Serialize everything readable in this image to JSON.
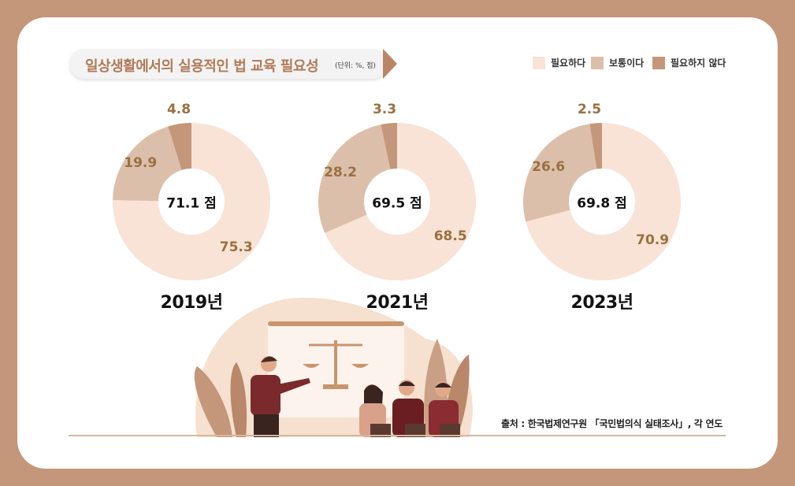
{
  "title": "일상생활에서의 실용적인 법 교육 필요성",
  "unit": "(단위: %, 점)",
  "legend": [
    {
      "label": "필요하다",
      "color": "#f8e3d6"
    },
    {
      "label": "보통이다",
      "color": "#dcbfaa"
    },
    {
      "label": "필요하지 않다",
      "color": "#c4967a"
    }
  ],
  "source": "출처 : 한국법제연구원 「국민법의식 실태조사」, 각 연도",
  "chart_data": {
    "type": "pie",
    "series_names": [
      "필요하다",
      "보통이다",
      "필요하지 않다"
    ],
    "charts": [
      {
        "year": "2019년",
        "score": "71.1 점",
        "values": [
          75.3,
          19.9,
          4.8
        ]
      },
      {
        "year": "2021년",
        "score": "69.5 점",
        "values": [
          68.5,
          28.2,
          3.3
        ]
      },
      {
        "year": "2023년",
        "score": "69.8 점",
        "values": [
          70.9,
          26.6,
          2.5
        ]
      }
    ]
  }
}
